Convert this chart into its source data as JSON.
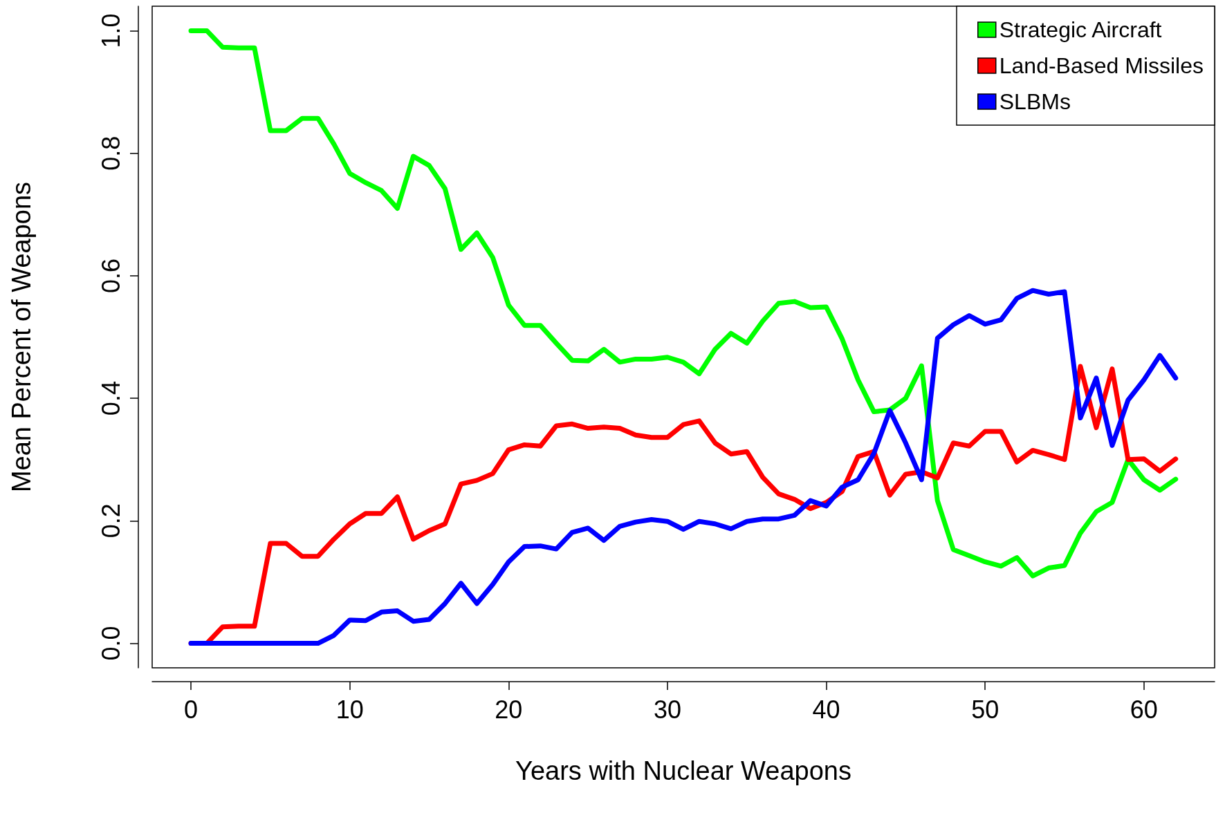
{
  "chart_data": {
    "type": "line",
    "xlabel": "Years with Nuclear Weapons",
    "ylabel": "Mean Percent of Weapons",
    "x": [
      0,
      1,
      2,
      3,
      4,
      5,
      6,
      7,
      8,
      9,
      10,
      11,
      12,
      13,
      14,
      15,
      16,
      17,
      18,
      19,
      20,
      21,
      22,
      23,
      24,
      25,
      26,
      27,
      28,
      29,
      30,
      31,
      32,
      33,
      34,
      35,
      36,
      37,
      38,
      39,
      40,
      41,
      42,
      43,
      44,
      45,
      46,
      47,
      48,
      49,
      50,
      51,
      52,
      53,
      54,
      55,
      56,
      57,
      58,
      59,
      60,
      61,
      62
    ],
    "series": [
      {
        "name": "Strategic Aircraft",
        "color": "#00ff00",
        "values": [
          1.0,
          1.0,
          0.973,
          0.972,
          0.972,
          0.837,
          0.837,
          0.857,
          0.857,
          0.815,
          0.767,
          0.752,
          0.739,
          0.71,
          0.795,
          0.78,
          0.742,
          0.643,
          0.67,
          0.63,
          0.552,
          0.519,
          0.519,
          0.49,
          0.462,
          0.461,
          0.48,
          0.459,
          0.464,
          0.464,
          0.467,
          0.459,
          0.44,
          0.48,
          0.506,
          0.49,
          0.526,
          0.555,
          0.558,
          0.548,
          0.549,
          0.497,
          0.43,
          0.378,
          0.381,
          0.4,
          0.453,
          0.233,
          0.153,
          0.143,
          0.133,
          0.126,
          0.14,
          0.11,
          0.123,
          0.127,
          0.18,
          0.215,
          0.23,
          0.3,
          0.267,
          0.25,
          0.268
        ]
      },
      {
        "name": "Land-Based Missiles",
        "color": "#ff0000",
        "values": [
          0,
          0,
          0.027,
          0.028,
          0.028,
          0.163,
          0.163,
          0.142,
          0.142,
          0.17,
          0.195,
          0.212,
          0.212,
          0.239,
          0.17,
          0.184,
          0.195,
          0.26,
          0.266,
          0.277,
          0.316,
          0.324,
          0.322,
          0.355,
          0.358,
          0.351,
          0.353,
          0.351,
          0.34,
          0.336,
          0.336,
          0.357,
          0.363,
          0.327,
          0.309,
          0.313,
          0.271,
          0.244,
          0.235,
          0.22,
          0.23,
          0.248,
          0.305,
          0.313,
          0.242,
          0.276,
          0.28,
          0.27,
          0.327,
          0.322,
          0.346,
          0.346,
          0.296,
          0.315,
          0.308,
          0.3,
          0.452,
          0.352,
          0.448,
          0.3,
          0.301,
          0.281,
          0.301
        ]
      },
      {
        "name": "SLBMs",
        "color": "#0000ff",
        "values": [
          0,
          0,
          0,
          0,
          0,
          0,
          0,
          0,
          0,
          0.013,
          0.038,
          0.037,
          0.051,
          0.053,
          0.036,
          0.039,
          0.065,
          0.098,
          0.065,
          0.096,
          0.133,
          0.158,
          0.159,
          0.154,
          0.181,
          0.188,
          0.168,
          0.191,
          0.198,
          0.202,
          0.199,
          0.186,
          0.199,
          0.195,
          0.187,
          0.199,
          0.203,
          0.203,
          0.209,
          0.233,
          0.224,
          0.255,
          0.267,
          0.31,
          0.38,
          0.327,
          0.267,
          0.498,
          0.52,
          0.535,
          0.521,
          0.528,
          0.563,
          0.576,
          0.57,
          0.574,
          0.368,
          0.433,
          0.323,
          0.397,
          0.43,
          0.47,
          0.433
        ]
      }
    ],
    "xlim": [
      -2.44,
      64.45
    ],
    "ylim": [
      -0.04,
      1.04
    ],
    "xticks": [
      0,
      10,
      20,
      30,
      40,
      50,
      60
    ],
    "yticks": [
      {
        "value": 0,
        "label": "0.0"
      },
      {
        "value": 0.2,
        "label": "0.2"
      },
      {
        "value": 0.4,
        "label": "0.4"
      },
      {
        "value": 0.6,
        "label": "0.6"
      },
      {
        "value": 0.8,
        "label": "0.8"
      },
      {
        "value": 1,
        "label": "1.0"
      }
    ],
    "legend": "top right",
    "grid": false,
    "marker": "none",
    "line_style": "solid"
  }
}
